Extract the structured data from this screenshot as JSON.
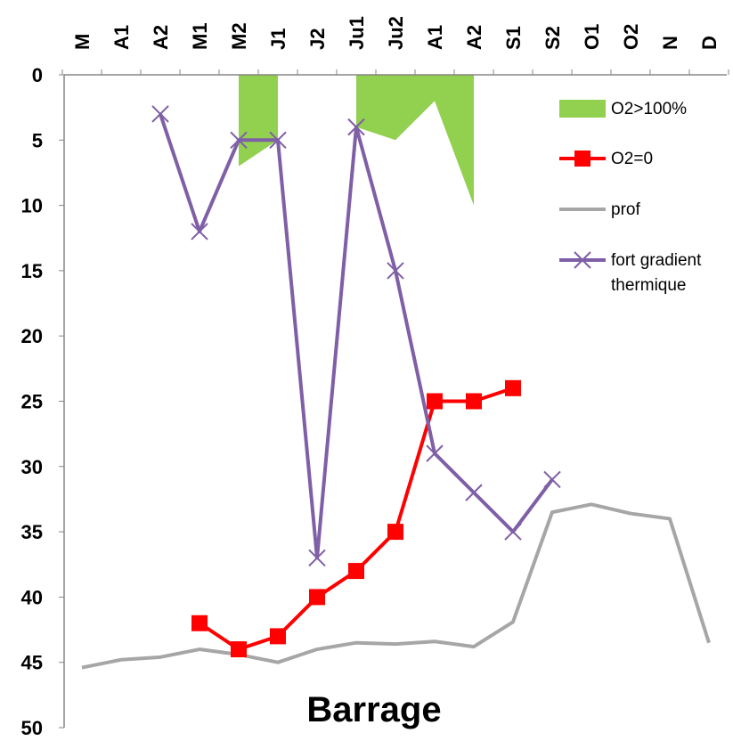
{
  "chart_data": {
    "type": "line",
    "title": "Barrage",
    "categories": [
      "M",
      "A1",
      "A2",
      "M1",
      "M2",
      "J1",
      "J2",
      "Ju1",
      "Ju2",
      "A1",
      "A2",
      "S1",
      "S2",
      "O1",
      "O2",
      "N",
      "D"
    ],
    "y_axis": {
      "range": [
        0,
        50
      ],
      "inverted": true,
      "ticks": [
        "0",
        "5",
        "10",
        "15",
        "20",
        "25",
        "30",
        "35",
        "40",
        "45",
        "50"
      ],
      "grid": false
    },
    "legend_position": "right",
    "series": [
      {
        "name": "O2>100%",
        "type": "area",
        "color": "#92D050",
        "segments": [
          {
            "start": 4,
            "points": [
              [
                0,
                7
              ],
              [
                0,
                5
              ]
            ]
          },
          {
            "start": 7,
            "points": [
              [
                0,
                4
              ],
              [
                0,
                5
              ],
              [
                0,
                2
              ],
              [
                0,
                10
              ]
            ]
          }
        ]
      },
      {
        "name": "O2=0",
        "type": "line",
        "marker": "square",
        "color": "#FF0000",
        "values": [
          null,
          null,
          null,
          42,
          44,
          43,
          40,
          38,
          35,
          25,
          25,
          24,
          null,
          null,
          null,
          null,
          null
        ]
      },
      {
        "name": "prof",
        "type": "line",
        "marker": "none",
        "color": "#A6A6A6",
        "values": [
          45.4,
          44.8,
          44.6,
          44,
          44.4,
          45,
          44,
          43.5,
          43.6,
          43.4,
          43.8,
          41.9,
          33.5,
          32.9,
          33.6,
          34,
          43.5
        ]
      },
      {
        "name": "fort gradient thermique",
        "type": "line",
        "marker": "x",
        "color": "#7F5FA6",
        "values": [
          null,
          null,
          3,
          12,
          5,
          5,
          37,
          4,
          15,
          29,
          32,
          35,
          31,
          null,
          null,
          null,
          null
        ]
      }
    ]
  }
}
